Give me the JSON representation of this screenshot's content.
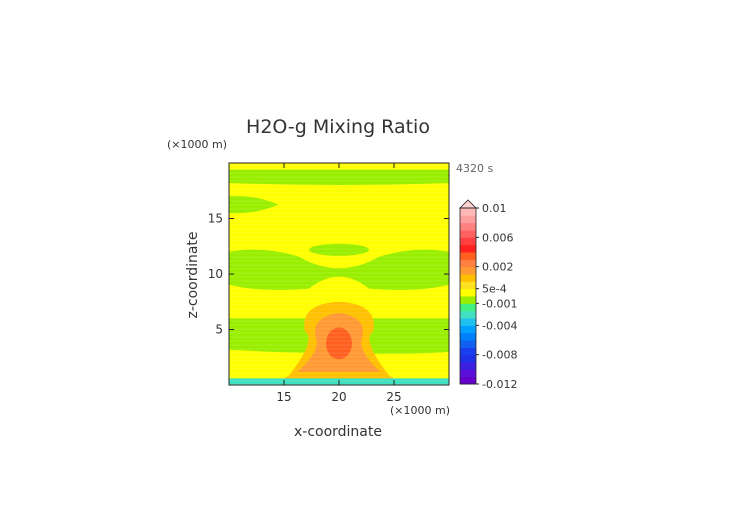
{
  "chart_data": {
    "type": "heatmap",
    "title": "H2O-g Mixing Ratio",
    "xlabel": "x-coordinate",
    "ylabel": "z-coordinate",
    "x_units": "(×1000 m)",
    "y_units": "(×1000 m)",
    "time_label": "4320 s",
    "xlim": [
      10,
      30
    ],
    "ylim": [
      0,
      20
    ],
    "x_ticks": [
      15,
      20,
      25
    ],
    "y_ticks": [
      5,
      10,
      15
    ],
    "x_tick_labels": [
      "15",
      "20",
      "25"
    ],
    "y_tick_labels": [
      "5",
      "10",
      "15"
    ],
    "grid": false,
    "colorbar": {
      "position": "right",
      "extend": "max",
      "levels": [
        -0.012,
        -0.011,
        -0.01,
        -0.009,
        -0.008,
        -0.007,
        -0.006,
        -0.005,
        -0.004,
        -0.003,
        -0.002,
        -0.001,
        -0.0005,
        0.0005,
        0.001,
        0.0015,
        0.002,
        0.003,
        0.004,
        0.005,
        0.006,
        0.007,
        0.008,
        0.009,
        0.01
      ],
      "colors": [
        "#6600cc",
        "#5a10d8",
        "#3a20e0",
        "#2030e8",
        "#1840f0",
        "#1060f0",
        "#0080f8",
        "#00a0ff",
        "#20c0f0",
        "#40e0c0",
        "#40f080",
        "#99ee00",
        "#ffff00",
        "#ffe020",
        "#ffc000",
        "#ff9933",
        "#ff8040",
        "#ff6020",
        "#ff2020",
        "#ff4040",
        "#ff6060",
        "#ff8080",
        "#ffa0a0",
        "#ffb8b8"
      ],
      "over_color": "#ffd0d0",
      "tick_labels": [
        "0.01",
        "0.006",
        "0.002",
        "5e-4",
        "-0.001",
        "-0.004",
        "-0.008",
        "-0.012"
      ]
    },
    "regions": [
      {
        "name": "background",
        "value": 0.0003,
        "color": "#ffff00"
      },
      {
        "name": "upper-band",
        "value": -0.0008,
        "color": "#99ee00",
        "x": [
          10,
          30
        ],
        "y": [
          18.2,
          19.4
        ]
      },
      {
        "name": "top-left-blob",
        "value": -0.0008,
        "color": "#99ee00",
        "x": [
          10,
          14.5
        ],
        "y": [
          15.5,
          17
        ]
      },
      {
        "name": "mid-band",
        "value": -0.0008,
        "color": "#99ee00",
        "x": [
          10,
          30
        ],
        "y": [
          8.5,
          12
        ]
      },
      {
        "name": "low-band",
        "value": -0.0008,
        "color": "#99ee00",
        "x": [
          10,
          30
        ],
        "y": [
          3,
          6
        ]
      },
      {
        "name": "core-outer",
        "value": 0.0015,
        "color": "#ffc000",
        "x": [
          16,
          24
        ],
        "y": [
          0.5,
          7.5
        ]
      },
      {
        "name": "core-inner",
        "value": 0.002,
        "color": "#ff9933",
        "x": [
          17.5,
          22.5
        ],
        "y": [
          1,
          6.5
        ]
      },
      {
        "name": "core-center",
        "value": 0.0035,
        "color": "#ff6020",
        "x": [
          19,
          21
        ],
        "y": [
          2.5,
          5
        ]
      },
      {
        "name": "surface-layer",
        "value": -0.002,
        "color": "#40e0c0",
        "x": [
          10,
          30
        ],
        "y": [
          0,
          0.6
        ]
      }
    ]
  }
}
